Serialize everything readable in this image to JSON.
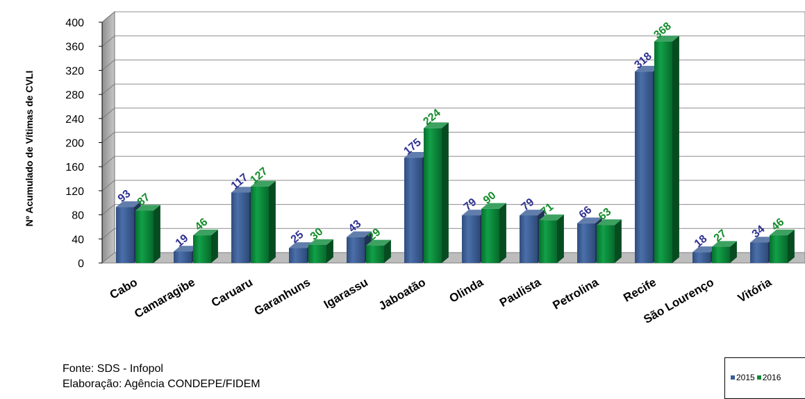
{
  "chart_data": {
    "type": "bar",
    "title": "",
    "ylabel": "Nº Acumulado de Vítimas de CVLI",
    "xlabel": "",
    "ylim": [
      0,
      400
    ],
    "yticks": [
      "0",
      "40",
      "80",
      "120",
      "160",
      "200",
      "240",
      "280",
      "320",
      "360",
      "400"
    ],
    "grid": true,
    "three_d": true,
    "legend_position": "bottom-right",
    "categories": [
      "Cabo",
      "Camaragibe",
      "Caruaru",
      "Garanhuns",
      "Igarassu",
      "Jaboatão",
      "Olinda",
      "Paulista",
      "Petrolina",
      "Recife",
      "São Lourenço",
      "Vitória"
    ],
    "series": [
      {
        "name": "2015",
        "color": "#3A5D96",
        "label_color": "#2E3192",
        "values": [
          93,
          19,
          117,
          25,
          43,
          175,
          79,
          79,
          66,
          318,
          18,
          34
        ]
      },
      {
        "name": "2016",
        "color": "#0B8A3A",
        "label_color": "#138C2A",
        "values": [
          87,
          46,
          127,
          30,
          29,
          224,
          90,
          71,
          63,
          368,
          27,
          46
        ]
      }
    ]
  },
  "source": {
    "line1": "Fonte: SDS - Infopol",
    "line2": "Elaboração: Agência CONDEPE/FIDEM"
  }
}
